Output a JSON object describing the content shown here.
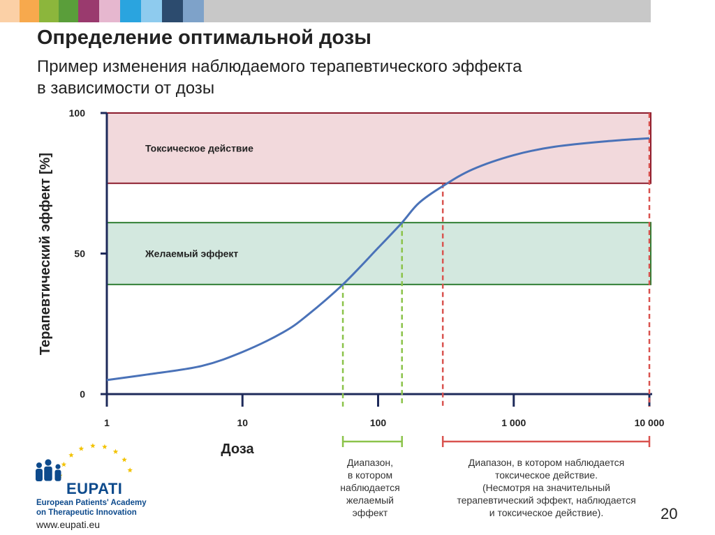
{
  "title": "Определение оптимальной дозы",
  "subtitle_line1": "Пример изменения наблюдаемого терапевтического эффекта",
  "subtitle_line2": "в зависимости от дозы",
  "chart_data": {
    "type": "line",
    "xlabel": "Доза",
    "ylabel": "Терапевтический эффект [%]",
    "x_scale": "log",
    "x_ticks": [
      "1",
      "10",
      "100",
      "1 000",
      "10 000"
    ],
    "y_ticks": [
      "0",
      "50",
      "100"
    ],
    "xlim": [
      1,
      10000
    ],
    "ylim": [
      0,
      100
    ],
    "series": [
      {
        "name": "",
        "color": "#4a72b8",
        "x": [
          1,
          2,
          5,
          10,
          20,
          30,
          55,
          100,
          150,
          200,
          300,
          500,
          1000,
          2000,
          5000,
          10000
        ],
        "y": [
          5,
          7,
          10,
          15,
          22,
          28,
          39,
          52,
          61,
          68,
          74,
          80,
          85,
          88,
          90,
          91
        ]
      }
    ],
    "bands": [
      {
        "label": "Токсическое действие",
        "y_from": 75,
        "y_to": 100,
        "fill": "#f2d9dc",
        "stroke": "#8b1a2b"
      },
      {
        "label": "Желаемый эффект",
        "y_from": 39,
        "y_to": 61,
        "fill": "#d3e8df",
        "stroke": "#2e7d32"
      }
    ],
    "markers": [
      {
        "x": 55,
        "y": 39,
        "color": "#8bc34a"
      },
      {
        "x": 150,
        "y": 61,
        "color": "#8bc34a"
      },
      {
        "x": 300,
        "y": 75,
        "color": "#d9534f"
      },
      {
        "x": 10000,
        "y": 100,
        "color": "#d9534f"
      }
    ],
    "ranges": [
      {
        "from": 55,
        "to": 150,
        "color": "#8bc34a"
      },
      {
        "from": 300,
        "to": 10000,
        "color": "#d9534f"
      }
    ]
  },
  "range_desired_lines": [
    "Диапазон,",
    "в котором",
    "наблюдается",
    "желаемый",
    "эффект"
  ],
  "range_toxic_lines": [
    "Диапазон, в котором наблюдается",
    "токсическое действие.",
    "(Несмотря на значительный",
    "терапевтический эффект, наблюдается",
    "и токсическое действие)."
  ],
  "logo": {
    "name": "EUPATI",
    "line1": "European Patients' Academy",
    "line2": "on Therapeutic Innovation",
    "url": "www.eupati.eu",
    "star_color": "#f2c200",
    "brand_color": "#0d4a8c"
  },
  "page_number": "20",
  "topbar_colors": [
    "#fbd0a6",
    "#f7a94d",
    "#8cb63c",
    "#5a9e3a",
    "#9a3a6e",
    "#e6b7cf",
    "#2aa4df",
    "#8ecbee",
    "#2c4b6e",
    "#7ea2c9",
    "#c8c8c8"
  ]
}
